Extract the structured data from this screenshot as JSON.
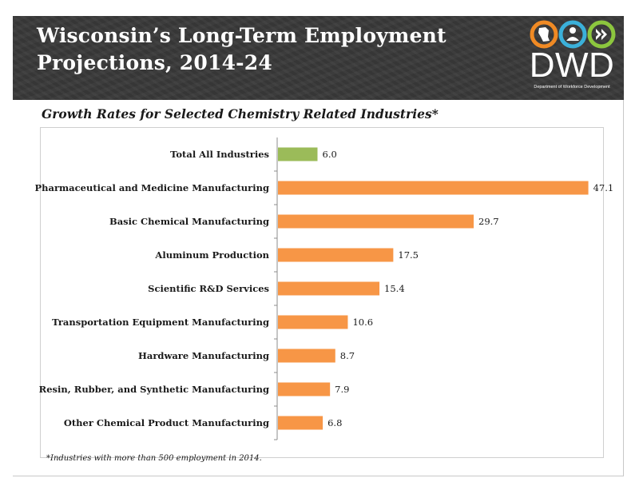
{
  "banner": {
    "title_line1": "Wisconsin’s Long-Term Employment",
    "title_line2": "Projections, 2014-24"
  },
  "logo": {
    "text": "DWD",
    "subtitle": "Department of Workforce Development",
    "icons": [
      "wisconsin-state-icon",
      "person-icon",
      "forward-arrows-icon"
    ],
    "colors": {
      "orange": "#f08a24",
      "blue": "#3bb0d9",
      "green": "#8cc63e"
    }
  },
  "chart_data": {
    "type": "bar",
    "orientation": "horizontal",
    "title": "Growth Rates for Selected Chemistry Related Industries*",
    "categories": [
      "Total All Industries",
      "Pharmaceutical and Medicine Manufacturing",
      "Basic Chemical Manufacturing",
      "Aluminum Production",
      "Scientific R&D Services",
      "Transportation Equipment Manufacturing",
      "Hardware Manufacturing",
      "Resin, Rubber, and Synthetic Manufacturing",
      "Other Chemical Product Manufacturing"
    ],
    "values": [
      6.0,
      47.1,
      29.7,
      17.5,
      15.4,
      10.6,
      8.7,
      7.9,
      6.8
    ],
    "value_labels": [
      "6.0",
      "47.1",
      "29.7",
      "17.5",
      "15.4",
      "10.6",
      "8.7",
      "7.9",
      "6.8"
    ],
    "bar_colors": [
      "#9bbb59",
      "#f79646",
      "#f79646",
      "#f79646",
      "#f79646",
      "#f79646",
      "#f79646",
      "#f79646",
      "#f79646"
    ],
    "xlim": [
      0,
      48
    ],
    "grid": false,
    "legend": false
  },
  "footnote": "*Industries with more than 500 employment in 2014."
}
